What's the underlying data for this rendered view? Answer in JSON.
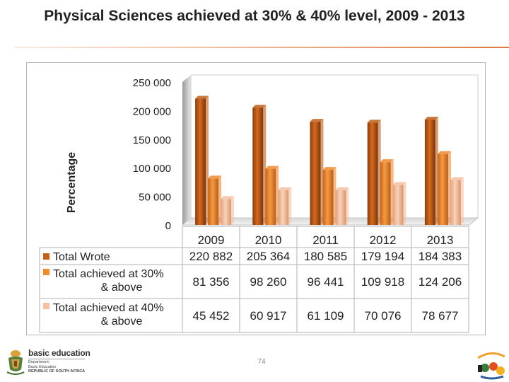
{
  "slide": {
    "title": "Physical Sciences achieved at 30% & 40% level, 2009 - 2013",
    "page_number": "74"
  },
  "footer": {
    "logo_title": "basic education",
    "logo_line1": "Department:",
    "logo_line2": "Basic Education",
    "logo_line3": "REPUBLIC OF SOUTH AFRICA"
  },
  "chart_data": {
    "type": "bar",
    "ylabel": "Percentage",
    "ylim": [
      0,
      250000
    ],
    "yticks": [
      0,
      50000,
      100000,
      150000,
      200000,
      250000
    ],
    "ytick_labels": [
      "0",
      "50 000",
      "100 000",
      "150 000",
      "200 000",
      "250 000"
    ],
    "categories": [
      "2009",
      "2010",
      "2011",
      "2012",
      "2013"
    ],
    "grid": false,
    "legend": "data-table",
    "series": [
      {
        "name": "Total Wrote",
        "color": "#c0601a",
        "values": [
          220882,
          205364,
          180585,
          179194,
          184383
        ],
        "labels": [
          "220 882",
          "205 364",
          "180 585",
          "179 194",
          "184 383"
        ]
      },
      {
        "name": "Total achieved at 30% & above",
        "color": "#f08a30",
        "values": [
          81356,
          98260,
          96441,
          109918,
          124206
        ],
        "labels": [
          "81 356",
          "98 260",
          "96 441",
          "109 918",
          "124 206"
        ]
      },
      {
        "name": "Total achieved at 40% & above",
        "color": "#f6c0a0",
        "values": [
          45452,
          60917,
          61109,
          70076,
          78677
        ],
        "labels": [
          "45 452",
          "60 917",
          "61 109",
          "70 076",
          "78 677"
        ]
      }
    ]
  }
}
